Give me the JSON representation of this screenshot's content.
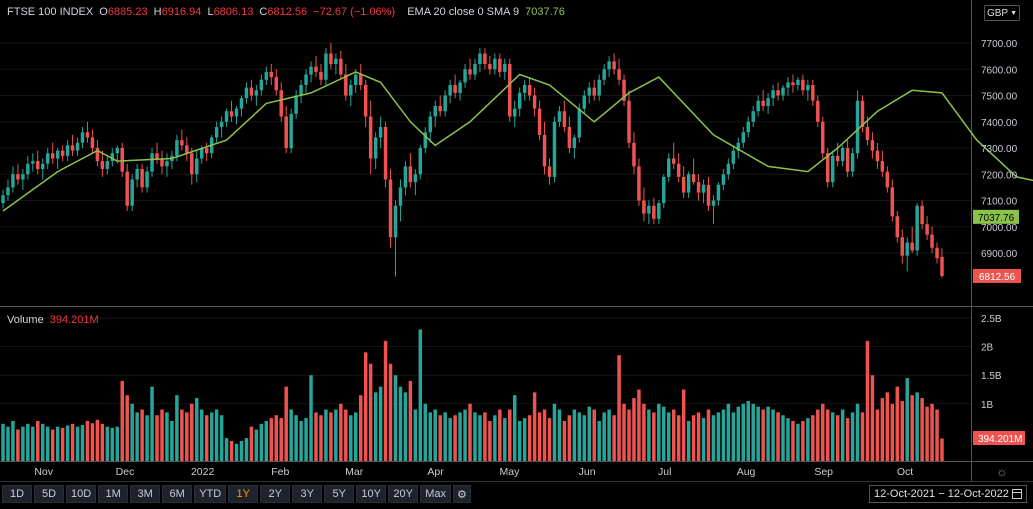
{
  "legend": {
    "symbol": "FTSE 100 INDEX",
    "o_label": "O",
    "o_value": "6885.23",
    "h_label": "H",
    "h_value": "6916.94",
    "l_label": "L",
    "l_value": "6806.13",
    "c_label": "C",
    "c_value": "6812.56",
    "change": "−72.67 (−1.06%)",
    "ema_label": "EMA 20 close 0 SMA 9",
    "ema_value": "7037.76"
  },
  "volume_legend": {
    "label": "Volume",
    "value": "394.201M"
  },
  "currency": "GBP",
  "toolbar": {
    "ranges": [
      "1D",
      "5D",
      "10D",
      "1M",
      "3M",
      "6M",
      "YTD",
      "1Y",
      "2Y",
      "3Y",
      "5Y",
      "10Y",
      "20Y",
      "Max"
    ],
    "active": "1Y",
    "settings_icon": "gear-icon"
  },
  "date_range": {
    "start": "12-Oct-2021",
    "separator": "−",
    "end": "12-Oct-2022",
    "icon": "calendar-icon"
  },
  "colors": {
    "up": "#26a69a",
    "down": "#ef5350",
    "ema": "#8bc34a",
    "background": "#000000",
    "grid": "#1c1c1c"
  },
  "chart_data": {
    "type": "candlestick",
    "price_axis": {
      "min": 6800,
      "max": 7700,
      "ticks": [
        6900,
        7000,
        7100,
        7200,
        7300,
        7400,
        7500,
        7600,
        7700
      ]
    },
    "volume_axis": {
      "min": 0,
      "max": 2500000000,
      "ticks": [
        {
          "v": 1000000000,
          "label": "1B"
        },
        {
          "v": 1500000000,
          "label": "1.5B"
        },
        {
          "v": 2000000000,
          "label": "2B"
        },
        {
          "v": 2500000000,
          "label": "2.5B"
        }
      ]
    },
    "x_labels": [
      "Nov",
      "Dec",
      "2022",
      "Feb",
      "Mar",
      "Apr",
      "May",
      "Jun",
      "Jul",
      "Aug",
      "Sep",
      "Oct"
    ],
    "last_price": 6812.56,
    "last_price_label": "6812.56",
    "ema_last": 7037.76,
    "ema_last_label": "7037.76",
    "last_volume_label": "394.201M",
    "candles": [
      [
        7090,
        7140,
        7070,
        7120,
        650
      ],
      [
        7120,
        7180,
        7100,
        7150,
        600
      ],
      [
        7150,
        7230,
        7130,
        7200,
        700
      ],
      [
        7200,
        7240,
        7160,
        7180,
        550
      ],
      [
        7180,
        7220,
        7140,
        7200,
        600
      ],
      [
        7200,
        7270,
        7180,
        7240,
        650
      ],
      [
        7240,
        7280,
        7210,
        7250,
        600
      ],
      [
        7250,
        7290,
        7200,
        7220,
        700
      ],
      [
        7220,
        7260,
        7180,
        7240,
        650
      ],
      [
        7240,
        7300,
        7220,
        7280,
        600
      ],
      [
        7280,
        7320,
        7240,
        7260,
        550
      ],
      [
        7260,
        7300,
        7220,
        7290,
        600
      ],
      [
        7290,
        7310,
        7250,
        7270,
        580
      ],
      [
        7270,
        7330,
        7250,
        7310,
        620
      ],
      [
        7310,
        7350,
        7270,
        7290,
        650
      ],
      [
        7290,
        7340,
        7270,
        7320,
        600
      ],
      [
        7320,
        7380,
        7300,
        7360,
        630
      ],
      [
        7360,
        7400,
        7320,
        7340,
        700
      ],
      [
        7340,
        7370,
        7280,
        7300,
        660
      ],
      [
        7300,
        7330,
        7230,
        7250,
        720
      ],
      [
        7250,
        7290,
        7190,
        7220,
        650
      ],
      [
        7220,
        7270,
        7200,
        7250,
        600
      ],
      [
        7250,
        7300,
        7230,
        7280,
        580
      ],
      [
        7280,
        7310,
        7240,
        7300,
        600
      ],
      [
        7300,
        7320,
        7190,
        7210,
        1400
      ],
      [
        7210,
        7240,
        7060,
        7080,
        1150
      ],
      [
        7080,
        7200,
        7060,
        7180,
        1000
      ],
      [
        7180,
        7240,
        7150,
        7220,
        850
      ],
      [
        7220,
        7240,
        7130,
        7150,
        900
      ],
      [
        7150,
        7230,
        7130,
        7210,
        800
      ],
      [
        7210,
        7300,
        7190,
        7280,
        1300
      ],
      [
        7280,
        7320,
        7240,
        7260,
        800
      ],
      [
        7260,
        7290,
        7200,
        7230,
        900
      ],
      [
        7230,
        7280,
        7190,
        7250,
        850
      ],
      [
        7250,
        7290,
        7220,
        7270,
        700
      ],
      [
        7270,
        7350,
        7250,
        7330,
        1150
      ],
      [
        7330,
        7370,
        7290,
        7310,
        900
      ],
      [
        7310,
        7340,
        7250,
        7280,
        850
      ],
      [
        7280,
        7300,
        7160,
        7200,
        1000
      ],
      [
        7200,
        7290,
        7170,
        7260,
        1100
      ],
      [
        7260,
        7310,
        7240,
        7300,
        900
      ],
      [
        7300,
        7320,
        7250,
        7280,
        800
      ],
      [
        7280,
        7350,
        7260,
        7340,
        850
      ],
      [
        7340,
        7400,
        7320,
        7380,
        900
      ],
      [
        7380,
        7420,
        7340,
        7400,
        800
      ],
      [
        7400,
        7450,
        7380,
        7440,
        400
      ],
      [
        7440,
        7480,
        7400,
        7420,
        350
      ],
      [
        7420,
        7460,
        7390,
        7450,
        300
      ],
      [
        7450,
        7500,
        7420,
        7490,
        350
      ],
      [
        7490,
        7550,
        7470,
        7530,
        400
      ],
      [
        7530,
        7560,
        7480,
        7500,
        600
      ],
      [
        7500,
        7540,
        7460,
        7520,
        550
      ],
      [
        7520,
        7580,
        7500,
        7560,
        650
      ],
      [
        7560,
        7610,
        7540,
        7590,
        700
      ],
      [
        7590,
        7620,
        7540,
        7570,
        750
      ],
      [
        7570,
        7600,
        7500,
        7520,
        800
      ],
      [
        7520,
        7550,
        7400,
        7420,
        750
      ],
      [
        7420,
        7460,
        7280,
        7300,
        1300
      ],
      [
        7300,
        7450,
        7280,
        7430,
        900
      ],
      [
        7430,
        7520,
        7410,
        7500,
        800
      ],
      [
        7500,
        7560,
        7470,
        7540,
        700
      ],
      [
        7540,
        7600,
        7510,
        7580,
        750
      ],
      [
        7580,
        7630,
        7550,
        7610,
        1500
      ],
      [
        7610,
        7650,
        7570,
        7590,
        850
      ],
      [
        7590,
        7620,
        7540,
        7560,
        800
      ],
      [
        7560,
        7680,
        7540,
        7660,
        900
      ],
      [
        7660,
        7700,
        7600,
        7620,
        850
      ],
      [
        7620,
        7660,
        7580,
        7640,
        900
      ],
      [
        7640,
        7670,
        7560,
        7580,
        1000
      ],
      [
        7580,
        7620,
        7480,
        7500,
        900
      ],
      [
        7500,
        7560,
        7460,
        7540,
        800
      ],
      [
        7540,
        7600,
        7510,
        7580,
        850
      ],
      [
        7580,
        7620,
        7520,
        7540,
        1150
      ],
      [
        7540,
        7560,
        7380,
        7420,
        1900
      ],
      [
        7420,
        7480,
        7200,
        7260,
        1700
      ],
      [
        7260,
        7360,
        7220,
        7340,
        1200
      ],
      [
        7340,
        7420,
        7300,
        7380,
        1300
      ],
      [
        7380,
        7400,
        7150,
        7180,
        2100
      ],
      [
        7180,
        7220,
        6920,
        6960,
        1700
      ],
      [
        6960,
        7100,
        6810,
        7080,
        1500
      ],
      [
        7080,
        7180,
        7020,
        7150,
        1300
      ],
      [
        7150,
        7250,
        7120,
        7230,
        1200
      ],
      [
        7230,
        7280,
        7150,
        7170,
        1400
      ],
      [
        7170,
        7220,
        7120,
        7200,
        900
      ],
      [
        7200,
        7310,
        7180,
        7300,
        2300
      ],
      [
        7300,
        7380,
        7280,
        7360,
        1000
      ],
      [
        7360,
        7440,
        7320,
        7420,
        850
      ],
      [
        7420,
        7480,
        7380,
        7460,
        900
      ],
      [
        7460,
        7500,
        7420,
        7440,
        800
      ],
      [
        7440,
        7520,
        7420,
        7500,
        850
      ],
      [
        7500,
        7560,
        7470,
        7540,
        750
      ],
      [
        7540,
        7580,
        7490,
        7510,
        800
      ],
      [
        7510,
        7560,
        7480,
        7550,
        850
      ],
      [
        7550,
        7620,
        7530,
        7600,
        900
      ],
      [
        7600,
        7640,
        7560,
        7580,
        1000
      ],
      [
        7580,
        7640,
        7560,
        7620,
        850
      ],
      [
        7620,
        7680,
        7590,
        7660,
        800
      ],
      [
        7660,
        7680,
        7600,
        7620,
        850
      ],
      [
        7620,
        7650,
        7580,
        7600,
        700
      ],
      [
        7600,
        7660,
        7580,
        7640,
        800
      ],
      [
        7640,
        7660,
        7570,
        7590,
        900
      ],
      [
        7590,
        7640,
        7560,
        7620,
        750
      ],
      [
        7620,
        7640,
        7400,
        7420,
        900
      ],
      [
        7420,
        7480,
        7380,
        7450,
        1150
      ],
      [
        7450,
        7530,
        7420,
        7510,
        700
      ],
      [
        7510,
        7560,
        7480,
        7540,
        750
      ],
      [
        7540,
        7570,
        7480,
        7500,
        800
      ],
      [
        7500,
        7530,
        7420,
        7450,
        1200
      ],
      [
        7450,
        7480,
        7330,
        7350,
        850
      ],
      [
        7350,
        7400,
        7200,
        7230,
        900
      ],
      [
        7230,
        7260,
        7160,
        7190,
        750
      ],
      [
        7190,
        7420,
        7170,
        7400,
        1000
      ],
      [
        7400,
        7460,
        7380,
        7440,
        900
      ],
      [
        7440,
        7480,
        7360,
        7380,
        700
      ],
      [
        7380,
        7420,
        7280,
        7300,
        800
      ],
      [
        7300,
        7350,
        7260,
        7340,
        900
      ],
      [
        7340,
        7470,
        7320,
        7450,
        850
      ],
      [
        7450,
        7520,
        7430,
        7500,
        800
      ],
      [
        7500,
        7550,
        7470,
        7530,
        950
      ],
      [
        7530,
        7560,
        7480,
        7500,
        900
      ],
      [
        7500,
        7580,
        7480,
        7560,
        700
      ],
      [
        7560,
        7620,
        7540,
        7600,
        850
      ],
      [
        7600,
        7650,
        7570,
        7630,
        900
      ],
      [
        7630,
        7660,
        7580,
        7600,
        800
      ],
      [
        7600,
        7640,
        7540,
        7560,
        1850
      ],
      [
        7560,
        7580,
        7460,
        7480,
        1000
      ],
      [
        7480,
        7520,
        7300,
        7320,
        900
      ],
      [
        7320,
        7360,
        7200,
        7230,
        1100
      ],
      [
        7230,
        7260,
        7080,
        7100,
        1250
      ],
      [
        7100,
        7150,
        7020,
        7050,
        1000
      ],
      [
        7050,
        7100,
        7010,
        7080,
        900
      ],
      [
        7080,
        7110,
        7010,
        7030,
        850
      ],
      [
        7030,
        7100,
        7010,
        7090,
        1000
      ],
      [
        7090,
        7200,
        7070,
        7190,
        950
      ],
      [
        7190,
        7280,
        7170,
        7260,
        850
      ],
      [
        7260,
        7320,
        7220,
        7240,
        900
      ],
      [
        7240,
        7280,
        7170,
        7190,
        800
      ],
      [
        7190,
        7230,
        7110,
        7130,
        1250
      ],
      [
        7130,
        7210,
        7110,
        7200,
        700
      ],
      [
        7200,
        7260,
        7160,
        7170,
        800
      ],
      [
        7170,
        7200,
        7100,
        7130,
        850
      ],
      [
        7130,
        7180,
        7090,
        7160,
        750
      ],
      [
        7160,
        7190,
        7060,
        7080,
        900
      ],
      [
        7080,
        7120,
        7010,
        7100,
        800
      ],
      [
        7100,
        7170,
        7080,
        7160,
        850
      ],
      [
        7160,
        7220,
        7140,
        7200,
        900
      ],
      [
        7200,
        7260,
        7180,
        7240,
        1000
      ],
      [
        7240,
        7310,
        7220,
        7290,
        850
      ],
      [
        7290,
        7340,
        7260,
        7320,
        950
      ],
      [
        7320,
        7380,
        7300,
        7360,
        1000
      ],
      [
        7360,
        7420,
        7340,
        7400,
        1050
      ],
      [
        7400,
        7460,
        7380,
        7440,
        1000
      ],
      [
        7440,
        7500,
        7420,
        7480,
        950
      ],
      [
        7480,
        7520,
        7440,
        7460,
        900
      ],
      [
        7460,
        7510,
        7430,
        7490,
        950
      ],
      [
        7490,
        7540,
        7460,
        7520,
        900
      ],
      [
        7520,
        7550,
        7480,
        7500,
        850
      ],
      [
        7500,
        7540,
        7480,
        7530,
        800
      ],
      [
        7530,
        7570,
        7500,
        7550,
        750
      ],
      [
        7550,
        7580,
        7510,
        7540,
        700
      ],
      [
        7540,
        7570,
        7520,
        7560,
        650
      ],
      [
        7560,
        7580,
        7500,
        7520,
        700
      ],
      [
        7520,
        7560,
        7480,
        7540,
        750
      ],
      [
        7540,
        7560,
        7460,
        7480,
        800
      ],
      [
        7480,
        7500,
        7380,
        7400,
        900
      ],
      [
        7400,
        7420,
        7260,
        7280,
        1000
      ],
      [
        7280,
        7300,
        7150,
        7170,
        900
      ],
      [
        7170,
        7290,
        7150,
        7270,
        850
      ],
      [
        7270,
        7320,
        7230,
        7250,
        800
      ],
      [
        7250,
        7310,
        7230,
        7300,
        900
      ],
      [
        7300,
        7330,
        7190,
        7210,
        750
      ],
      [
        7210,
        7300,
        7190,
        7280,
        850
      ],
      [
        7280,
        7520,
        7260,
        7480,
        1000
      ],
      [
        7480,
        7500,
        7360,
        7380,
        850
      ],
      [
        7380,
        7420,
        7310,
        7330,
        2100
      ],
      [
        7330,
        7360,
        7260,
        7290,
        1500
      ],
      [
        7290,
        7320,
        7220,
        7250,
        900
      ],
      [
        7250,
        7290,
        7190,
        7210,
        1100
      ],
      [
        7210,
        7230,
        7130,
        7150,
        1200
      ],
      [
        7150,
        7180,
        7020,
        7040,
        1000
      ],
      [
        7040,
        7060,
        6940,
        6960,
        1300
      ],
      [
        6960,
        6990,
        6860,
        6890,
        1050
      ],
      [
        6890,
        6960,
        6830,
        6940,
        1450
      ],
      [
        6940,
        7000,
        6900,
        6910,
        1150
      ],
      [
        6910,
        7090,
        6890,
        7080,
        1200
      ],
      [
        7080,
        7100,
        6990,
        7010,
        1100
      ],
      [
        7010,
        7040,
        6950,
        6970,
        950
      ],
      [
        6970,
        7000,
        6900,
        6920,
        1000
      ],
      [
        6920,
        6940,
        6860,
        6880,
        900
      ],
      [
        6885.23,
        6916.94,
        6806.13,
        6812.56,
        394
      ]
    ],
    "ema": [
      [
        0,
        7060
      ],
      [
        11,
        7210
      ],
      [
        19,
        7290
      ],
      [
        23,
        7250
      ],
      [
        34,
        7260
      ],
      [
        45,
        7330
      ],
      [
        53,
        7470
      ],
      [
        62,
        7510
      ],
      [
        71,
        7590
      ],
      [
        76,
        7550
      ],
      [
        82,
        7400
      ],
      [
        87,
        7310
      ],
      [
        94,
        7400
      ],
      [
        104,
        7580
      ],
      [
        110,
        7540
      ],
      [
        119,
        7400
      ],
      [
        126,
        7510
      ],
      [
        132,
        7570
      ],
      [
        143,
        7350
      ],
      [
        154,
        7230
      ],
      [
        162,
        7210
      ],
      [
        168,
        7300
      ],
      [
        176,
        7440
      ],
      [
        183,
        7520
      ],
      [
        189,
        7510
      ],
      [
        196,
        7330
      ],
      [
        204,
        7190
      ],
      [
        209,
        7170
      ],
      [
        214,
        7100
      ]
    ]
  }
}
